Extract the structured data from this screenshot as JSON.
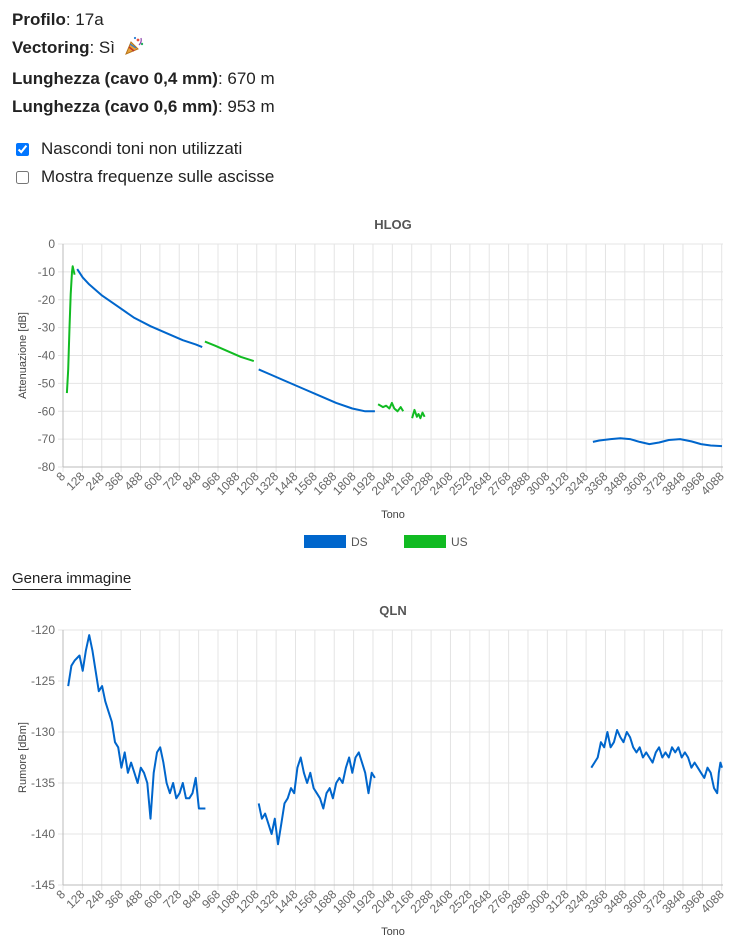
{
  "info": {
    "profile_label": "Profilo",
    "profile_value": "17a",
    "vectoring_label": "Vectoring",
    "vectoring_value": "Sì",
    "vectoring_icon": "party-popper-icon",
    "length04_label": "Lunghezza (cavo 0,4 mm)",
    "length04_value": "670 m",
    "length06_label": "Lunghezza (cavo 0,6 mm)",
    "length06_value": "953 m"
  },
  "options": {
    "hide_unused_label": "Nascondi toni non utilizzati",
    "hide_unused_checked": true,
    "show_freq_label": "Mostra frequenze sulle ascisse",
    "show_freq_checked": false
  },
  "generate_image_label": "Genera immagine",
  "colors": {
    "ds": "#0066cc",
    "us": "#11bb22",
    "grid": "#e4e4e4"
  },
  "chart_data": [
    {
      "id": "hlog",
      "type": "line",
      "title": "HLOG",
      "xlabel": "Tono",
      "ylabel": "Attenuazione [dB]",
      "xlim": [
        8,
        4096
      ],
      "ylim": [
        -80,
        0
      ],
      "yticks": [
        0,
        -10,
        -20,
        -30,
        -40,
        -50,
        -60,
        -70,
        -80
      ],
      "xticks": [
        8,
        128,
        248,
        368,
        488,
        608,
        728,
        848,
        968,
        1088,
        1208,
        1328,
        1448,
        1568,
        1688,
        1808,
        1928,
        2048,
        2168,
        2288,
        2408,
        2528,
        2648,
        2768,
        2888,
        3008,
        3128,
        3248,
        3368,
        3488,
        3608,
        3728,
        3848,
        3968,
        4088
      ],
      "grid": true,
      "legend": "bottom",
      "series": [
        {
          "name": "DS",
          "color": "#0066cc",
          "segments": [
            [
              [
                96,
                -9
              ],
              [
                130,
                -12
              ],
              [
                170,
                -14.5
              ],
              [
                250,
                -18.5
              ],
              [
                350,
                -22.5
              ],
              [
                450,
                -26.5
              ],
              [
                550,
                -29.5
              ],
              [
                650,
                -32
              ],
              [
                750,
                -34.5
              ],
              [
                830,
                -36
              ],
              [
                870,
                -37
              ]
            ],
            [
              [
                1220,
                -45
              ],
              [
                1300,
                -47
              ],
              [
                1400,
                -49.5
              ],
              [
                1500,
                -52
              ],
              [
                1600,
                -54.5
              ],
              [
                1700,
                -57
              ],
              [
                1800,
                -59
              ],
              [
                1880,
                -60
              ],
              [
                1940,
                -60
              ]
            ],
            [
              [
                3290,
                -71
              ],
              [
                3330,
                -70.5
              ],
              [
                3400,
                -70
              ],
              [
                3460,
                -69.7
              ],
              [
                3520,
                -70
              ],
              [
                3580,
                -71
              ],
              [
                3640,
                -71.8
              ],
              [
                3700,
                -71.2
              ],
              [
                3760,
                -70.3
              ],
              [
                3830,
                -70
              ],
              [
                3900,
                -70.8
              ],
              [
                3960,
                -71.8
              ],
              [
                4020,
                -72.3
              ],
              [
                4090,
                -72.5
              ]
            ]
          ]
        },
        {
          "name": "US",
          "color": "#11bb22",
          "segments": [
            [
              [
                32,
                -53.5
              ],
              [
                40,
                -45
              ],
              [
                48,
                -30
              ],
              [
                56,
                -18
              ],
              [
                64,
                -10
              ],
              [
                68,
                -8
              ],
              [
                72,
                -9
              ],
              [
                80,
                -11
              ]
            ],
            [
              [
                887,
                -35
              ],
              [
                950,
                -36.5
              ],
              [
                1030,
                -38.5
              ],
              [
                1110,
                -40.5
              ],
              [
                1190,
                -42
              ]
            ],
            [
              [
                1960,
                -57.5
              ],
              [
                1990,
                -58.5
              ],
              [
                2010,
                -58
              ],
              [
                2030,
                -59
              ],
              [
                2045,
                -57
              ],
              [
                2060,
                -59
              ],
              [
                2080,
                -60
              ],
              [
                2100,
                -58.5
              ],
              [
                2115,
                -60
              ]
            ],
            [
              [
                2170,
                -62.5
              ],
              [
                2185,
                -59.5
              ],
              [
                2200,
                -62
              ],
              [
                2210,
                -61
              ],
              [
                2222,
                -62.5
              ],
              [
                2235,
                -60.5
              ],
              [
                2248,
                -62
              ]
            ]
          ]
        }
      ]
    },
    {
      "id": "qln",
      "type": "line",
      "title": "QLN",
      "xlabel": "Tono",
      "ylabel": "Rumore [dBm]",
      "xlim": [
        8,
        4096
      ],
      "ylim": [
        -145,
        -120
      ],
      "yticks": [
        -120,
        -125,
        -130,
        -135,
        -140,
        -145
      ],
      "xticks": [
        8,
        128,
        248,
        368,
        488,
        608,
        728,
        848,
        968,
        1088,
        1208,
        1328,
        1448,
        1568,
        1688,
        1808,
        1928,
        2048,
        2168,
        2288,
        2408,
        2528,
        2648,
        2768,
        2888,
        3008,
        3128,
        3248,
        3368,
        3488,
        3608,
        3728,
        3848,
        3968,
        4088
      ],
      "grid": true,
      "series": [
        {
          "name": "",
          "color": "#0066cc",
          "segments": [
            [
              [
                40,
                -125.5
              ],
              [
                60,
                -123.5
              ],
              [
                80,
                -123
              ],
              [
                110,
                -122.5
              ],
              [
                130,
                -124
              ],
              [
                150,
                -122
              ],
              [
                170,
                -120.5
              ],
              [
                190,
                -122
              ],
              [
                210,
                -124
              ],
              [
                230,
                -126
              ],
              [
                250,
                -125.5
              ],
              [
                270,
                -127
              ],
              [
                290,
                -128
              ],
              [
                310,
                -129
              ],
              [
                330,
                -131
              ],
              [
                350,
                -131.5
              ],
              [
                370,
                -133.5
              ],
              [
                390,
                -132
              ],
              [
                410,
                -134
              ],
              [
                430,
                -133
              ],
              [
                450,
                -134
              ],
              [
                470,
                -135
              ],
              [
                490,
                -133.5
              ],
              [
                510,
                -134
              ],
              [
                530,
                -135
              ],
              [
                550,
                -138.5
              ],
              [
                570,
                -134
              ],
              [
                590,
                -132
              ],
              [
                610,
                -131.5
              ],
              [
                630,
                -133
              ],
              [
                650,
                -135
              ],
              [
                670,
                -136
              ],
              [
                690,
                -135
              ],
              [
                710,
                -136.5
              ],
              [
                730,
                -136
              ],
              [
                750,
                -135
              ],
              [
                770,
                -136.5
              ],
              [
                790,
                -136.5
              ],
              [
                810,
                -136
              ],
              [
                830,
                -134.5
              ],
              [
                850,
                -137.5
              ],
              [
                870,
                -137.5
              ],
              [
                890,
                -137.5
              ]
            ],
            [
              [
                1220,
                -137
              ],
              [
                1240,
                -138.5
              ],
              [
                1260,
                -138
              ],
              [
                1280,
                -139
              ],
              [
                1300,
                -140
              ],
              [
                1320,
                -138.5
              ],
              [
                1340,
                -141
              ],
              [
                1360,
                -139
              ],
              [
                1380,
                -137
              ],
              [
                1400,
                -136.5
              ],
              [
                1420,
                -135.5
              ],
              [
                1440,
                -136
              ],
              [
                1460,
                -133.5
              ],
              [
                1480,
                -132.5
              ],
              [
                1500,
                -134
              ],
              [
                1520,
                -135
              ],
              [
                1540,
                -134
              ],
              [
                1560,
                -135.5
              ],
              [
                1580,
                -136
              ],
              [
                1600,
                -136.5
              ],
              [
                1620,
                -137.5
              ],
              [
                1640,
                -136
              ],
              [
                1660,
                -135.5
              ],
              [
                1680,
                -136.5
              ],
              [
                1700,
                -135
              ],
              [
                1720,
                -134.5
              ],
              [
                1740,
                -135
              ],
              [
                1760,
                -133.5
              ],
              [
                1780,
                -132.5
              ],
              [
                1800,
                -134
              ],
              [
                1820,
                -132.5
              ],
              [
                1840,
                -132
              ],
              [
                1860,
                -133
              ],
              [
                1880,
                -134
              ],
              [
                1900,
                -136
              ],
              [
                1920,
                -134
              ],
              [
                1940,
                -134.5
              ]
            ],
            [
              [
                3280,
                -133.5
              ],
              [
                3300,
                -133
              ],
              [
                3320,
                -132.5
              ],
              [
                3340,
                -131
              ],
              [
                3360,
                -131.5
              ],
              [
                3380,
                -130
              ],
              [
                3400,
                -131.5
              ],
              [
                3420,
                -131
              ],
              [
                3440,
                -129.8
              ],
              [
                3460,
                -130.5
              ],
              [
                3480,
                -131
              ],
              [
                3500,
                -130
              ],
              [
                3520,
                -130.5
              ],
              [
                3540,
                -131.5
              ],
              [
                3560,
                -132
              ],
              [
                3580,
                -131.5
              ],
              [
                3600,
                -132.5
              ],
              [
                3620,
                -132
              ],
              [
                3640,
                -132.5
              ],
              [
                3660,
                -133
              ],
              [
                3680,
                -132
              ],
              [
                3700,
                -131.5
              ],
              [
                3720,
                -132.5
              ],
              [
                3740,
                -132
              ],
              [
                3760,
                -132.5
              ],
              [
                3780,
                -131.5
              ],
              [
                3800,
                -132
              ],
              [
                3820,
                -131.5
              ],
              [
                3840,
                -132.5
              ],
              [
                3860,
                -132
              ],
              [
                3880,
                -132.5
              ],
              [
                3900,
                -133.5
              ],
              [
                3920,
                -133
              ],
              [
                3940,
                -133.5
              ],
              [
                3960,
                -134
              ],
              [
                3980,
                -134.5
              ],
              [
                4000,
                -133.5
              ],
              [
                4020,
                -134
              ],
              [
                4040,
                -135.5
              ],
              [
                4060,
                -136
              ],
              [
                4070,
                -134
              ],
              [
                4080,
                -133
              ],
              [
                4090,
                -133.5
              ]
            ]
          ]
        }
      ]
    }
  ]
}
